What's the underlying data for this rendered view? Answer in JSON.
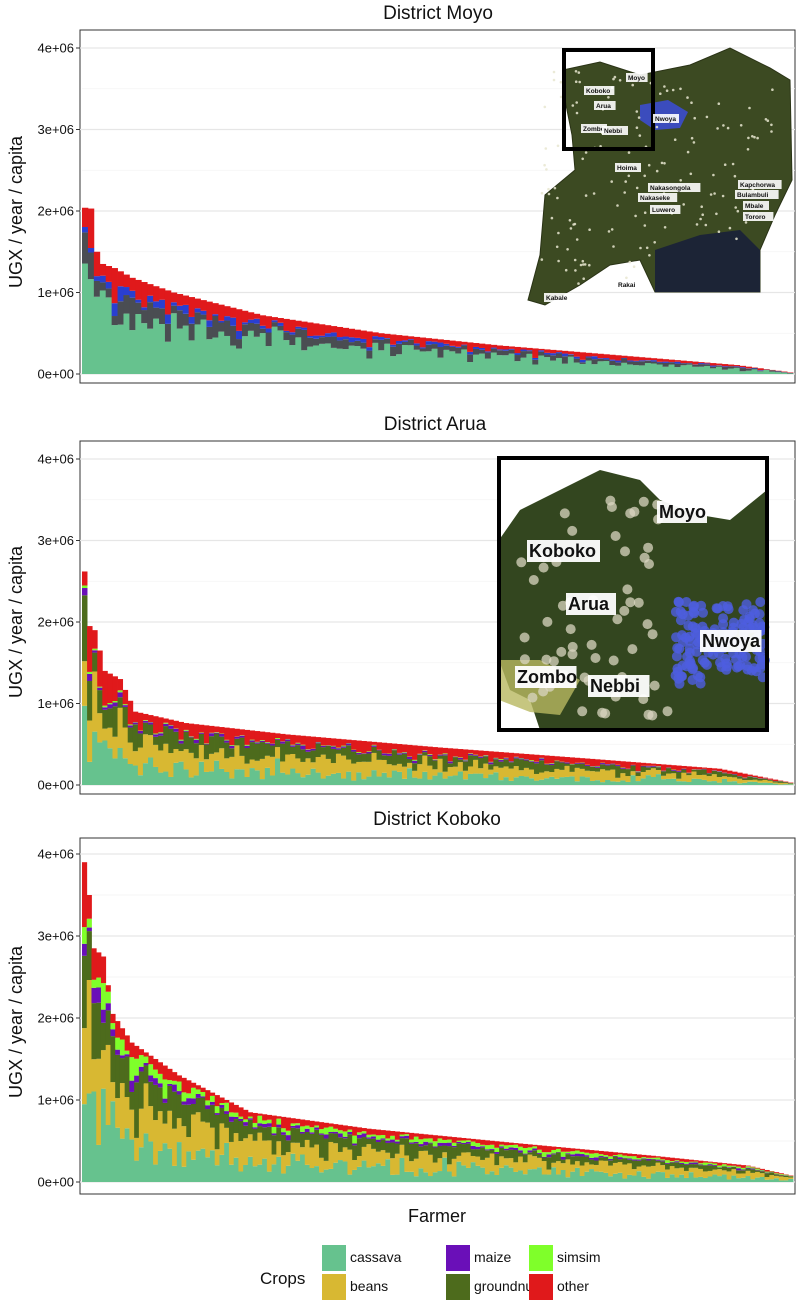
{
  "chart_data": [
    {
      "type": "bar",
      "stacked": true,
      "title": "District Moyo",
      "ylabel": "UGX / year / capita",
      "ylim": [
        0,
        4200000
      ],
      "yticks": [
        "0e+00",
        "1e+06",
        "2e+06",
        "3e+06",
        "4e+06"
      ],
      "n_farmers": 120,
      "totals_profile": [
        [
          0,
          2040000
        ],
        [
          1,
          2030000
        ],
        [
          2,
          1500000
        ],
        [
          3,
          1350000
        ],
        [
          5,
          1300000
        ],
        [
          8,
          1180000
        ],
        [
          15,
          1000000
        ],
        [
          30,
          720000
        ],
        [
          50,
          500000
        ],
        [
          70,
          350000
        ],
        [
          90,
          230000
        ],
        [
          110,
          110000
        ],
        [
          119,
          20000
        ]
      ],
      "series": [
        {
          "name": "cassava",
          "share": 0.62
        },
        {
          "name": "groundnut",
          "share": 0.16
        },
        {
          "name": "maize",
          "share": 0.06
        },
        {
          "name": "other",
          "share": 0.16
        }
      ],
      "grid": true,
      "inset_map": {
        "labels": [
          "Moyo",
          "Koboko",
          "Arua",
          "Nwoya",
          "Zombo",
          "Nebbi",
          "Hoima",
          "Nakasongola",
          "Nakaseke",
          "Luwero",
          "Kapchorwa",
          "Bulambuli",
          "Mbale",
          "Tororo",
          "Rakai",
          "Kabale"
        ]
      }
    },
    {
      "type": "bar",
      "stacked": true,
      "title": "District Arua",
      "ylabel": "UGX / year / capita",
      "ylim": [
        0,
        4200000
      ],
      "yticks": [
        "0e+00",
        "1e+06",
        "2e+06",
        "3e+06",
        "4e+06"
      ],
      "n_farmers": 140,
      "totals_profile": [
        [
          0,
          2620000
        ],
        [
          1,
          1950000
        ],
        [
          2,
          1900000
        ],
        [
          4,
          1400000
        ],
        [
          7,
          1300000
        ],
        [
          10,
          900000
        ],
        [
          20,
          760000
        ],
        [
          40,
          620000
        ],
        [
          70,
          460000
        ],
        [
          100,
          320000
        ],
        [
          125,
          200000
        ],
        [
          139,
          30000
        ]
      ],
      "series": [
        {
          "name": "cassava",
          "share": 0.25
        },
        {
          "name": "beans",
          "share": 0.3
        },
        {
          "name": "groundnut",
          "share": 0.22
        },
        {
          "name": "maize",
          "share": 0.03
        },
        {
          "name": "simsim",
          "share": 0.01
        },
        {
          "name": "other",
          "share": 0.19
        }
      ],
      "grid": true,
      "inset_map": {
        "labels": [
          "Moyo",
          "Koboko",
          "Arua",
          "Nwoya",
          "Zombo",
          "Nebbi"
        ]
      }
    },
    {
      "type": "bar",
      "stacked": true,
      "title": "District Koboko",
      "ylabel": "UGX / year / capita",
      "xlabel": "Farmer",
      "ylim": [
        0,
        4200000
      ],
      "yticks": [
        "0e+00",
        "1e+06",
        "2e+06",
        "3e+06",
        "4e+06"
      ],
      "n_farmers": 150,
      "totals_profile": [
        [
          0,
          3900000
        ],
        [
          1,
          3500000
        ],
        [
          2,
          2850000
        ],
        [
          4,
          2750000
        ],
        [
          6,
          2050000
        ],
        [
          10,
          1700000
        ],
        [
          20,
          1300000
        ],
        [
          35,
          850000
        ],
        [
          60,
          650000
        ],
        [
          90,
          480000
        ],
        [
          120,
          320000
        ],
        [
          140,
          200000
        ],
        [
          149,
          80000
        ]
      ],
      "series": [
        {
          "name": "cassava",
          "share": 0.3
        },
        {
          "name": "beans",
          "share": 0.3
        },
        {
          "name": "groundnut",
          "share": 0.2
        },
        {
          "name": "maize",
          "share": 0.04
        },
        {
          "name": "simsim",
          "share": 0.07
        },
        {
          "name": "other",
          "share": 0.09
        }
      ],
      "grid": true
    }
  ],
  "legend": {
    "title": "Crops",
    "items": [
      {
        "name": "cassava",
        "color": "#66c28e"
      },
      {
        "name": "beans",
        "color": "#d8b832"
      },
      {
        "name": "maize",
        "color": "#6a0fb8"
      },
      {
        "name": "groundnut",
        "color": "#4d6b1c"
      },
      {
        "name": "simsim",
        "color": "#7fff2a"
      },
      {
        "name": "other",
        "color": "#e0191b"
      }
    ]
  },
  "colors": {
    "cassava": "#66c28e",
    "beans": "#d8b832",
    "maize": "#6a0fb8",
    "groundnut": "#4d6b1c",
    "simsim": "#7fff2a",
    "other": "#e0191b",
    "moyo_groundnut": "#4a4d52",
    "moyo_maize": "#2a3fd0"
  }
}
